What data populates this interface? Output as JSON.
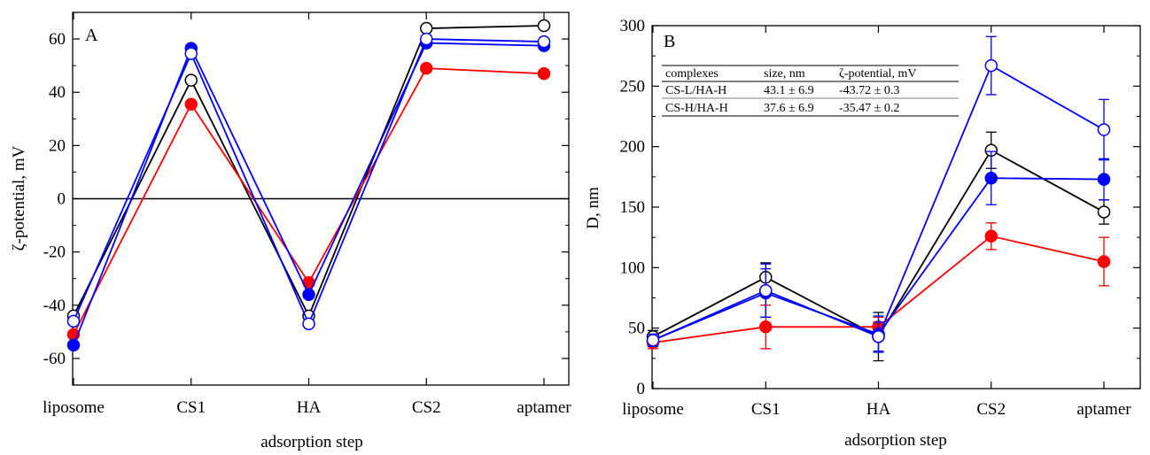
{
  "chart_data": [
    {
      "type": "line",
      "panel_label": "A",
      "categories": [
        "liposome",
        "CS1",
        "HA",
        "CS2",
        "aptamer"
      ],
      "xlabel": "adsorption step",
      "ylabel": "ζ-potential, mV",
      "ylim": [
        -70,
        70
      ],
      "yticks": [
        -60,
        -40,
        -20,
        0,
        20,
        40,
        60
      ],
      "ytick_labels": [
        "-60",
        "-40",
        "-20",
        "0",
        "20",
        "40",
        "60"
      ],
      "zero_line": true,
      "grid": false,
      "series": [
        {
          "color": "#000000",
          "marker": "open-circle",
          "values": [
            -44,
            44.5,
            -44,
            64,
            65
          ]
        },
        {
          "color": "#ff0000",
          "marker": "filled-circle",
          "values": [
            -51,
            35.5,
            -31.5,
            49,
            47
          ]
        },
        {
          "color": "#0000ff",
          "marker": "filled-circle",
          "values": [
            -55,
            56.5,
            -36,
            58.5,
            57.5
          ]
        },
        {
          "color": "#0000ff",
          "marker": "open-circle",
          "values": [
            -46,
            54.5,
            -47,
            60,
            59
          ]
        }
      ]
    },
    {
      "type": "line",
      "panel_label": "B",
      "categories": [
        "liposome",
        "CS1",
        "HA",
        "CS2",
        "aptamer"
      ],
      "xlabel": "adsorption step",
      "ylabel": "D, nm",
      "ylim": [
        0,
        300
      ],
      "yticks": [
        0,
        50,
        100,
        150,
        200,
        250,
        300
      ],
      "ytick_labels": [
        "0",
        "50",
        "100",
        "150",
        "200",
        "250",
        "300"
      ],
      "grid": false,
      "series": [
        {
          "color": "#000000",
          "marker": "open-circle",
          "values": [
            43,
            92,
            43,
            197,
            146
          ],
          "errors": [
            5,
            12,
            20,
            15,
            10
          ]
        },
        {
          "color": "#ff0000",
          "marker": "filled-circle",
          "values": [
            38,
            51,
            51,
            126,
            105
          ],
          "errors": [
            5,
            18,
            8,
            11,
            20
          ]
        },
        {
          "color": "#0000ff",
          "marker": "filled-circle",
          "values": [
            40,
            79,
            45,
            174,
            173
          ],
          "errors": [
            5,
            20,
            15,
            22,
            17
          ]
        },
        {
          "color": "#0000ff",
          "marker": "open-circle",
          "values": [
            40,
            81,
            43,
            267,
            214
          ],
          "errors": [
            5,
            22,
            12,
            24,
            25
          ]
        }
      ],
      "table": {
        "headers": [
          "complexes",
          "size, nm",
          "ζ-potential, mV"
        ],
        "rows": [
          [
            "CS-L/HA-H",
            "43.1 ± 6.9",
            "-43.72 ± 0.3"
          ],
          [
            "CS-H/HA-H",
            "37.6 ± 6.9",
            "-35.47 ± 0.2"
          ]
        ]
      }
    }
  ]
}
